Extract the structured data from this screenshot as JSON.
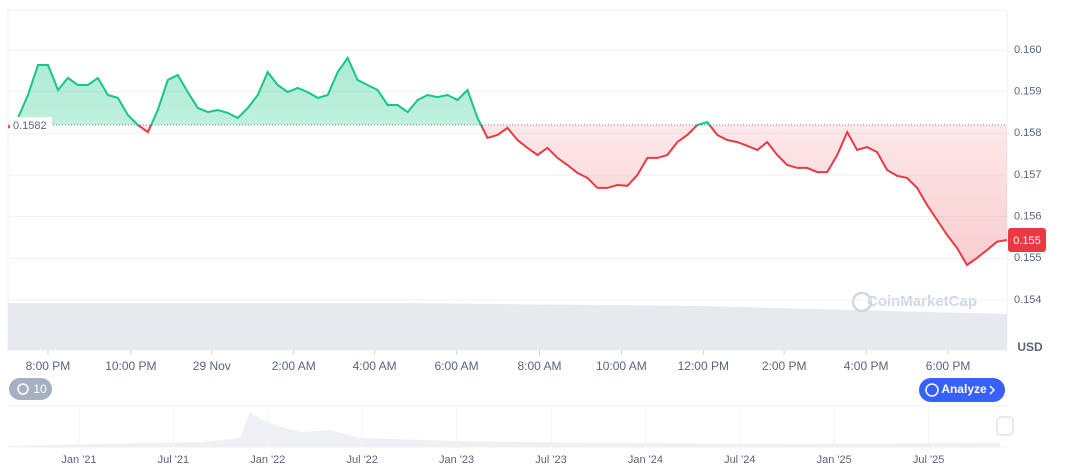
{
  "chart_data": {
    "type": "line",
    "values": [
      0.15813,
      0.15837,
      0.15892,
      0.15964,
      0.15964,
      0.15904,
      0.15933,
      0.15916,
      0.15916,
      0.15933,
      0.15892,
      0.15885,
      0.15844,
      0.1582,
      0.15803,
      0.15856,
      0.15928,
      0.1594,
      0.15899,
      0.15861,
      0.15851,
      0.15856,
      0.15849,
      0.15837,
      0.15861,
      0.15892,
      0.15947,
      0.15916,
      0.15899,
      0.15909,
      0.15899,
      0.15885,
      0.15892,
      0.15947,
      0.15981,
      0.15928,
      0.15916,
      0.15904,
      0.15868,
      0.15868,
      0.15851,
      0.1588,
      0.15892,
      0.15887,
      0.15892,
      0.1588,
      0.15904,
      0.15837,
      0.15789,
      0.15796,
      0.15813,
      0.15784,
      0.15765,
      0.15748,
      0.15765,
      0.15741,
      0.15724,
      0.15705,
      0.15693,
      0.15669,
      0.15669,
      0.15676,
      0.15674,
      0.157,
      0.15741,
      0.15741,
      0.15748,
      0.15779,
      0.15796,
      0.1582,
      0.15827,
      0.15796,
      0.15784,
      0.15779,
      0.1577,
      0.1576,
      0.15779,
      0.15748,
      0.15724,
      0.15717,
      0.15717,
      0.15707,
      0.15707,
      0.15748,
      0.15803,
      0.1576,
      0.15767,
      0.15755,
      0.15712,
      0.15698,
      0.15693,
      0.15669,
      0.15628,
      0.15592,
      0.15556,
      0.15525,
      0.15484,
      0.15501,
      0.1552,
      0.1554,
      0.15544
    ],
    "baseline": 0.1582,
    "last_price_label": "0.155",
    "up_color": "#16c784",
    "down_color": "#ea3943",
    "xlim": [
      0,
      100
    ],
    "xticks": [
      {
        "value": 4.0,
        "label": "8:00 PM"
      },
      {
        "value": 12.3,
        "label": "10:00 PM"
      },
      {
        "value": 20.4,
        "label": "29 Nov"
      },
      {
        "value": 28.6,
        "label": "2:00 AM"
      },
      {
        "value": 36.7,
        "label": "4:00 AM"
      },
      {
        "value": 44.9,
        "label": "6:00 AM"
      },
      {
        "value": 53.2,
        "label": "8:00 AM"
      },
      {
        "value": 61.4,
        "label": "10:00 AM"
      },
      {
        "value": 69.6,
        "label": "12:00 PM"
      },
      {
        "value": 77.7,
        "label": "2:00 PM"
      },
      {
        "value": 85.9,
        "label": "4:00 PM"
      },
      {
        "value": 94.1,
        "label": "6:00 PM"
      }
    ],
    "ylim": [
      0.154,
      0.16096
    ],
    "yticks": [
      0.154,
      0.155,
      0.156,
      0.157,
      0.158,
      0.159,
      {
        "value": 0.16,
        "label": "0.160"
      }
    ],
    "grid": true,
    "currency": "USD",
    "watermark": "CoinMarketCap",
    "history_badge": "10",
    "analyze_button": "Analyze",
    "navigator_labels": [
      "Jan '21",
      "Jul '21",
      "Jan '22",
      "Jul '22",
      "Jan '23",
      "Jul '23",
      "Jan '24",
      "Jul '24",
      "Jan '25",
      "Jul '25"
    ]
  }
}
